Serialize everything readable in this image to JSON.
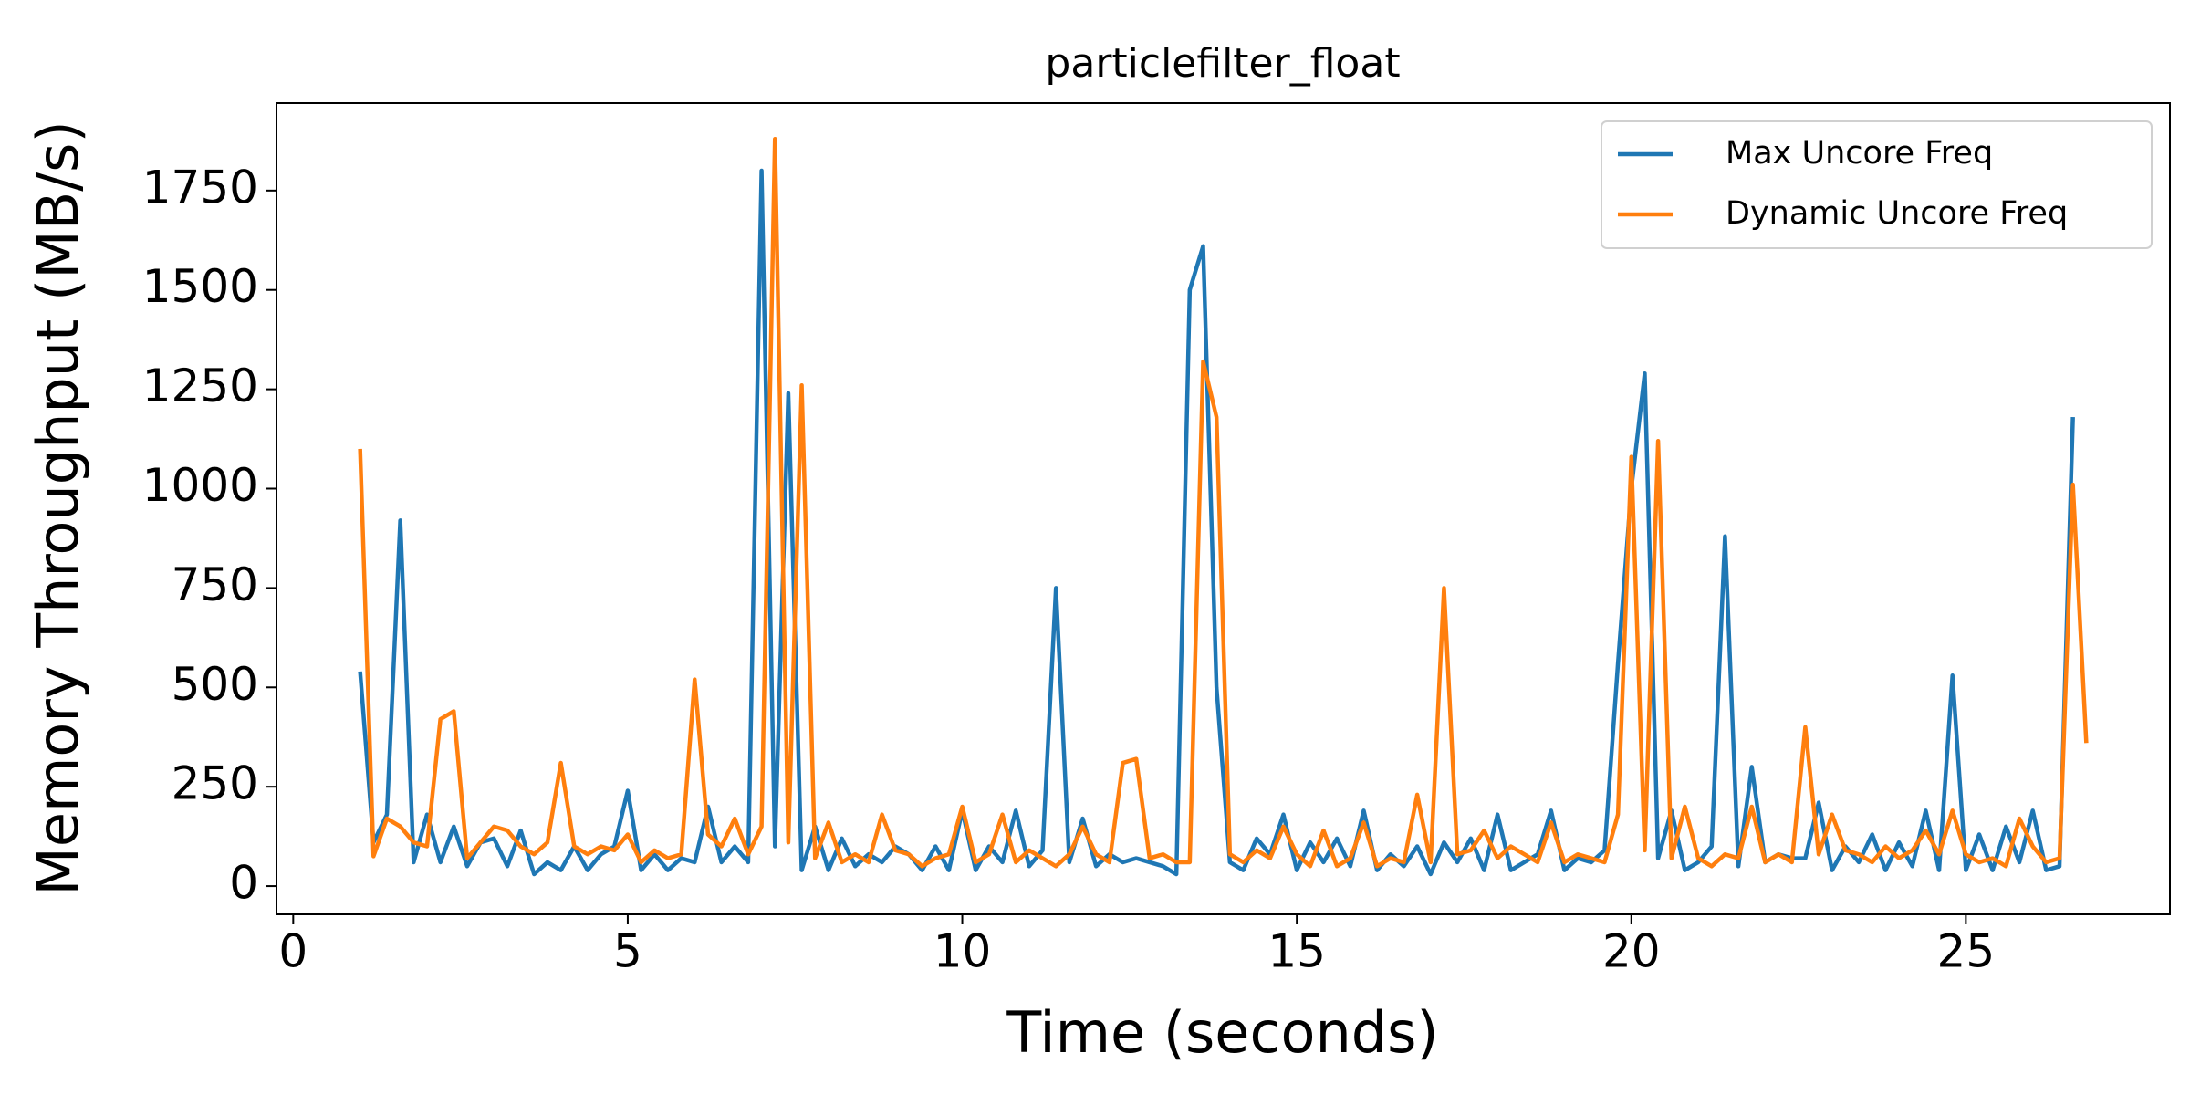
{
  "chart_data": {
    "type": "line",
    "title": "particlefilter_float",
    "xlabel": "Time (seconds)",
    "ylabel": "Memory Throughput (MB/s)",
    "x": [
      1.0,
      1.2,
      1.4,
      1.6,
      1.8,
      2.0,
      2.2,
      2.4,
      2.6,
      2.8,
      3.0,
      3.2,
      3.4,
      3.6,
      3.8,
      4.0,
      4.2,
      4.4,
      4.6,
      4.8,
      5.0,
      5.2,
      5.4,
      5.6,
      5.8,
      6.0,
      6.2,
      6.4,
      6.6,
      6.8,
      7.0,
      7.2,
      7.4,
      7.6,
      7.8,
      8.0,
      8.2,
      8.4,
      8.6,
      8.8,
      9.0,
      9.2,
      9.4,
      9.6,
      9.8,
      10.0,
      10.2,
      10.4,
      10.6,
      10.8,
      11.0,
      11.2,
      11.4,
      11.6,
      11.8,
      12.0,
      12.2,
      12.4,
      12.6,
      12.8,
      13.0,
      13.2,
      13.4,
      13.6,
      13.8,
      14.0,
      14.2,
      14.4,
      14.6,
      14.8,
      15.0,
      15.2,
      15.4,
      15.6,
      15.8,
      16.0,
      16.2,
      16.4,
      16.6,
      16.8,
      17.0,
      17.2,
      17.4,
      17.6,
      17.8,
      18.0,
      18.2,
      18.4,
      18.6,
      18.8,
      19.0,
      19.2,
      19.4,
      19.6,
      19.8,
      20.0,
      20.2,
      20.4,
      20.6,
      20.8,
      21.0,
      21.2,
      21.4,
      21.6,
      21.8,
      22.0,
      22.2,
      22.4,
      22.6,
      22.8,
      23.0,
      23.2,
      23.4,
      23.6,
      23.8,
      24.0,
      24.2,
      24.4,
      24.6,
      24.8,
      25.0,
      25.2,
      25.4,
      25.6,
      25.8,
      26.0,
      26.2,
      26.4,
      26.6,
      26.8
    ],
    "series": [
      {
        "name": "Max Uncore Freq",
        "color": "#1f77b4",
        "values": [
          540,
          110,
          180,
          920,
          60,
          180,
          60,
          150,
          50,
          110,
          120,
          50,
          140,
          30,
          60,
          40,
          100,
          40,
          80,
          100,
          240,
          40,
          80,
          40,
          70,
          60,
          200,
          60,
          100,
          60,
          1800,
          100,
          1240,
          40,
          150,
          40,
          120,
          50,
          80,
          60,
          100,
          80,
          40,
          100,
          40,
          190,
          40,
          100,
          60,
          190,
          50,
          90,
          750,
          60,
          170,
          50,
          80,
          60,
          70,
          60,
          50,
          30,
          1500,
          1610,
          500,
          60,
          40,
          120,
          80,
          180,
          40,
          110,
          60,
          120,
          50,
          190,
          40,
          80,
          50,
          100,
          30,
          110,
          60,
          120,
          40,
          180,
          40,
          60,
          80,
          190,
          40,
          70,
          60,
          90,
          560,
          1000,
          1290,
          70,
          190,
          40,
          60,
          100,
          880,
          50,
          300,
          60,
          80,
          70,
          70,
          210,
          40,
          100,
          60,
          130,
          40,
          110,
          50,
          190,
          40,
          530,
          40,
          130,
          40,
          150,
          60,
          190,
          40,
          50,
          1180,
          null
        ]
      },
      {
        "name": "Dynamic Uncore Freq",
        "color": "#ff7f0e",
        "values": [
          1100,
          75,
          170,
          150,
          110,
          100,
          420,
          440,
          70,
          110,
          150,
          140,
          100,
          80,
          110,
          310,
          100,
          80,
          100,
          90,
          130,
          60,
          90,
          70,
          80,
          520,
          130,
          100,
          170,
          80,
          150,
          1880,
          110,
          1260,
          70,
          160,
          60,
          80,
          60,
          180,
          90,
          80,
          50,
          70,
          80,
          200,
          60,
          80,
          180,
          60,
          90,
          70,
          50,
          80,
          150,
          80,
          60,
          310,
          320,
          70,
          80,
          60,
          60,
          1320,
          1180,
          80,
          60,
          90,
          70,
          150,
          80,
          50,
          140,
          50,
          70,
          160,
          50,
          70,
          60,
          230,
          60,
          750,
          80,
          90,
          140,
          70,
          100,
          80,
          60,
          160,
          60,
          80,
          70,
          60,
          180,
          1080,
          90,
          1120,
          70,
          200,
          70,
          50,
          80,
          70,
          200,
          60,
          80,
          60,
          400,
          80,
          180,
          90,
          80,
          60,
          100,
          70,
          90,
          140,
          80,
          190,
          80,
          60,
          70,
          50,
          170,
          100,
          60,
          70,
          1010,
          360
        ]
      }
    ],
    "xlim": [
      -0.25,
      28.05
    ],
    "xticks": [
      0,
      5,
      10,
      15,
      20,
      25
    ],
    "ylim": [
      -71,
      1970
    ],
    "yticks": [
      0,
      250,
      500,
      750,
      1000,
      1250,
      1500,
      1750
    ],
    "legend": "upper right"
  }
}
